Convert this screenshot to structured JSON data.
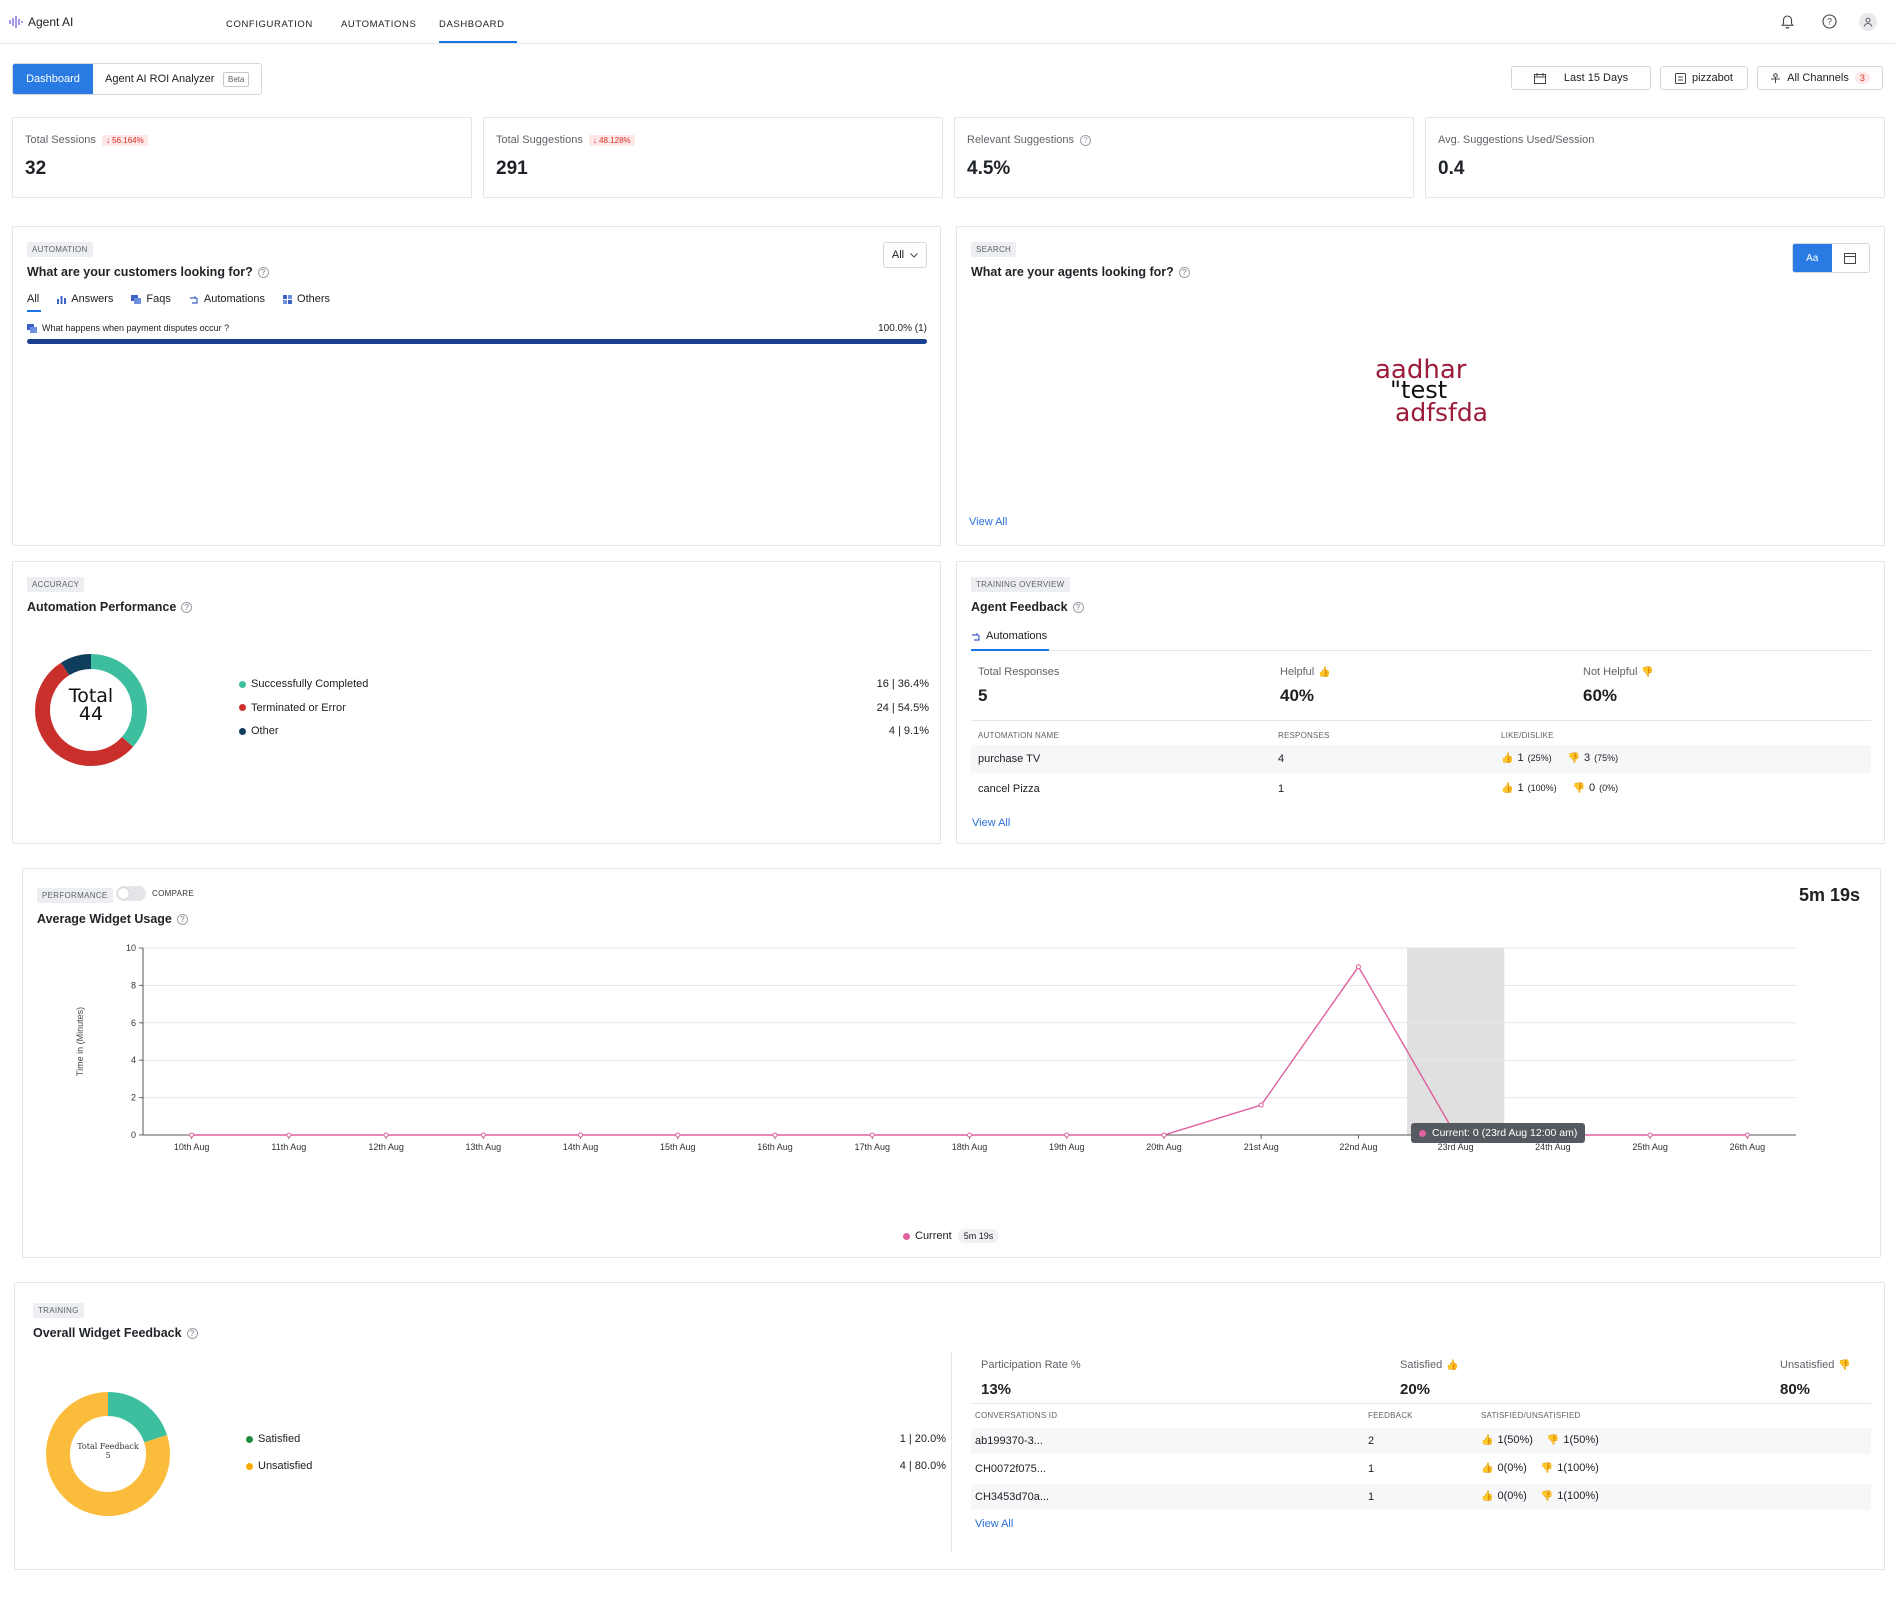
{
  "app": {
    "title": "Agent AI"
  },
  "nav": {
    "configuration": "CONFIGURATION",
    "automations": "AUTOMATIONS",
    "dashboard": "DASHBOARD"
  },
  "subtabs": {
    "dashboard": "Dashboard",
    "roi": "Agent AI ROI Analyzer",
    "beta": "Beta"
  },
  "filters": {
    "date": "Last 15 Days",
    "bot": "pizzabot",
    "channels": "All Channels",
    "channels_count": "3"
  },
  "kpis": [
    {
      "label": "Total Sessions",
      "change": "↓ 56.164%",
      "value": "32"
    },
    {
      "label": "Total Suggestions",
      "change": "↓ 48.128%",
      "value": "291"
    },
    {
      "label": "Relevant Suggestions",
      "change": "",
      "value": "4.5%"
    },
    {
      "label": "Avg. Suggestions Used/Session",
      "change": "",
      "value": "0.4"
    }
  ],
  "customers": {
    "tag": "AUTOMATION",
    "title": "What are your customers looking for?",
    "select": "All",
    "tabs": [
      "All",
      "Answers",
      "Faqs",
      "Automations",
      "Others"
    ],
    "row_label": "What happens when payment disputes occur ?",
    "row_value": "100.0% (1)",
    "row_fraction": 1.0
  },
  "agents_search": {
    "tag": "SEARCH",
    "title": "What are your agents looking for?",
    "toggle_text": "Aa",
    "words": [
      "aadhar",
      "\"test",
      "adfsfda"
    ],
    "view_all": "View All"
  },
  "automation_perf": {
    "tag": "ACCURACY",
    "title": "Automation Performance",
    "center_label": "Total",
    "center_value": "44",
    "items": [
      {
        "label": "Successfully Completed",
        "value": "16 | 36.4%",
        "fraction": 0.364,
        "color": "#3dbf9f"
      },
      {
        "label": "Terminated or Error",
        "value": "24 | 54.5%",
        "fraction": 0.545,
        "color": "#c9302c"
      },
      {
        "label": "Other",
        "value": "4 | 9.1%",
        "fraction": 0.091,
        "color": "#0f3d5c"
      }
    ]
  },
  "agent_feedback": {
    "tag": "TRAINING OVERVIEW",
    "title": "Agent Feedback",
    "tab": "Automations",
    "stats": [
      {
        "label": "Total Responses",
        "value": "5"
      },
      {
        "label": "Helpful",
        "value": "40%"
      },
      {
        "label": "Not Helpful",
        "value": "60%"
      }
    ],
    "columns": [
      "AUTOMATION NAME",
      "RESPONSES",
      "LIKE/DISLIKE"
    ],
    "rows": [
      {
        "name": "purchase TV",
        "responses": "4",
        "like": "1",
        "like_pct": "(25%)",
        "dislike": "3",
        "dislike_pct": "(75%)"
      },
      {
        "name": "cancel Pizza",
        "responses": "1",
        "like": "1",
        "like_pct": "(100%)",
        "dislike": "0",
        "dislike_pct": "(0%)"
      }
    ],
    "view_all": "View All"
  },
  "widget_usage": {
    "tag": "PERFORMANCE",
    "compare": "COMPARE",
    "title": "Average Widget Usage",
    "total": "5m 19s",
    "legend_label": "Current",
    "legend_value": "5m 19s",
    "tooltip": "Current: 0 (23rd Aug 12:00 am)"
  },
  "chart_data": {
    "type": "line",
    "x": [
      "10th Aug",
      "11th Aug",
      "12th Aug",
      "13th Aug",
      "14th Aug",
      "15th Aug",
      "16th Aug",
      "17th Aug",
      "18th Aug",
      "19th Aug",
      "20th Aug",
      "21st Aug",
      "22nd Aug",
      "23rd Aug",
      "24th Aug",
      "25th Aug",
      "26th Aug"
    ],
    "series": [
      {
        "name": "Current",
        "values": [
          0,
          0,
          0,
          0,
          0,
          0,
          0,
          0,
          0,
          0,
          0,
          1.6,
          9,
          0,
          0,
          0,
          0
        ],
        "color": "#e0609f"
      }
    ],
    "ylabel": "Time in (Minutes)",
    "ylim": [
      0,
      10
    ],
    "yticks": [
      "0",
      "2",
      "4",
      "6",
      "8",
      "10"
    ],
    "highlight_index": 13,
    "grid": true
  },
  "widget_feedback": {
    "tag": "TRAINING",
    "title": "Overall Widget Feedback",
    "center_label": "Total Feedback",
    "center_value": "5",
    "items": [
      {
        "label": "Satisfied",
        "value": "1 | 20.0%",
        "fraction": 0.2,
        "color": "#3dbf9f",
        "dot": "#1e8e3e"
      },
      {
        "label": "Unsatisfied",
        "value": "4 | 80.0%",
        "fraction": 0.8,
        "color": "#fbbc3c",
        "dot": "#f9ab00"
      }
    ],
    "stats": [
      {
        "label": "Participation Rate %",
        "value": "13%"
      },
      {
        "label": "Satisfied",
        "value": "20%"
      },
      {
        "label": "Unsatisfied",
        "value": "80%"
      }
    ],
    "columns": [
      "CONVERSATIONS ID",
      "FEEDBACK",
      "SATISFIED/UNSATISFIED"
    ],
    "rows": [
      {
        "id": "ab199370-3...",
        "feedback": "2",
        "sat": "1(50%)",
        "unsat": "1(50%)"
      },
      {
        "id": "CH0072f075...",
        "feedback": "1",
        "sat": "0(0%)",
        "unsat": "1(100%)"
      },
      {
        "id": "CH3453d70a...",
        "feedback": "1",
        "sat": "0(0%)",
        "unsat": "1(100%)"
      }
    ],
    "view_all": "View All"
  }
}
